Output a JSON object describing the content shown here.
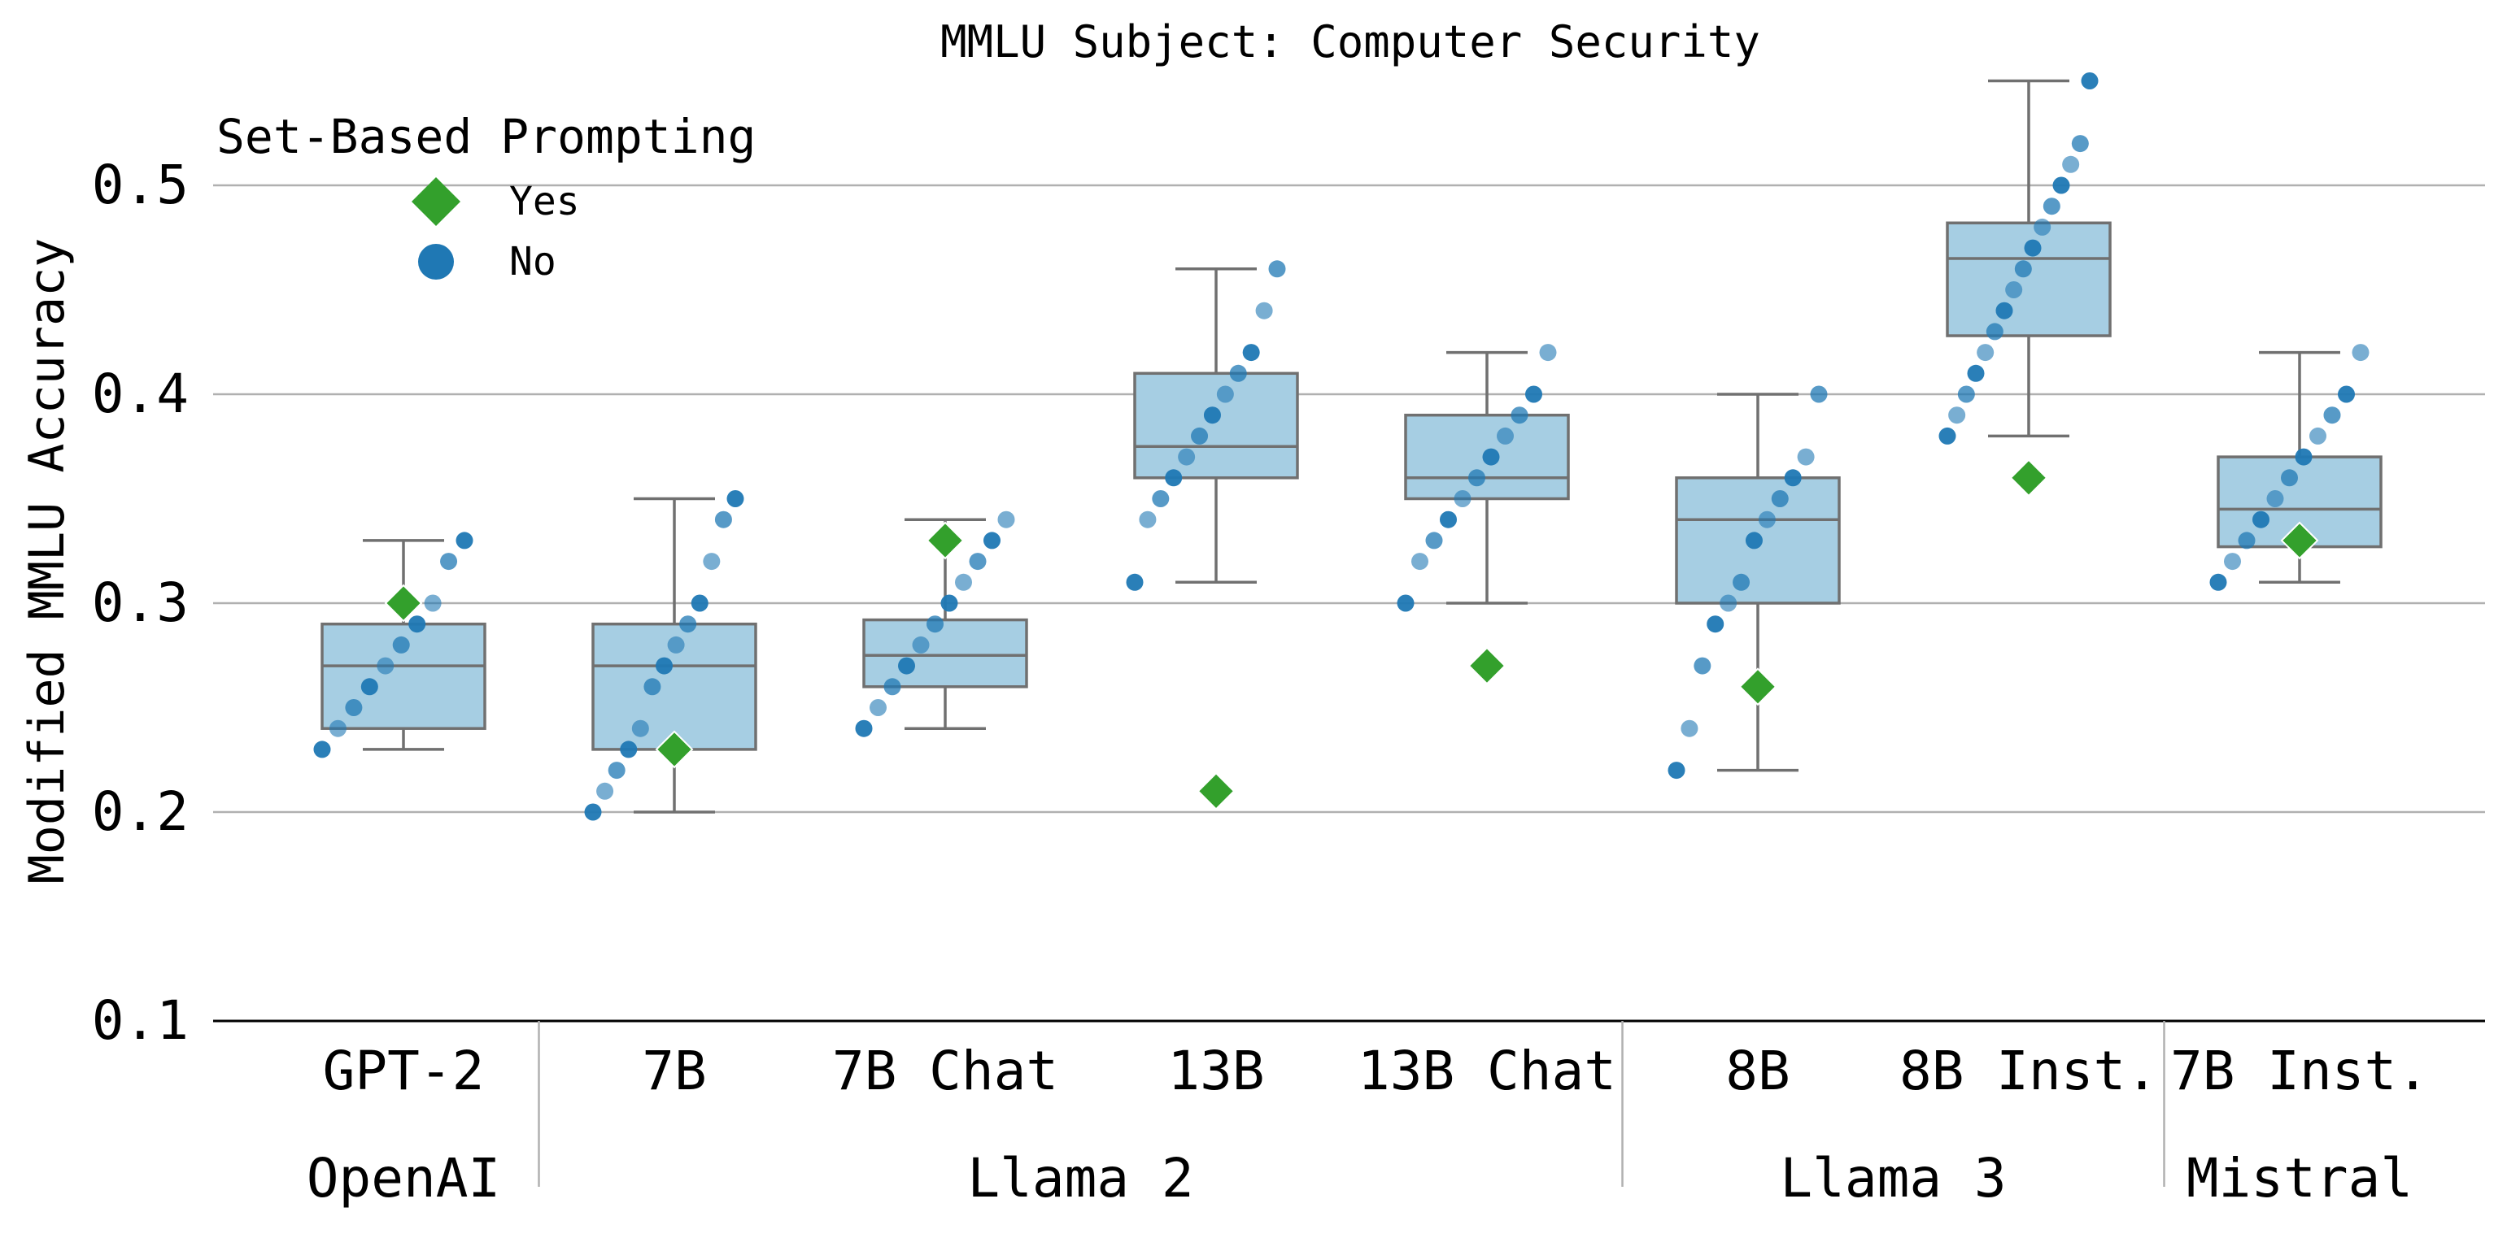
{
  "chart_data": {
    "type": "box",
    "title": "MMLU Subject: Computer Security",
    "ylabel": "Modified MMLU Accuracy",
    "xlabel": "",
    "ylim": [
      0.1,
      0.55
    ],
    "yticks": [
      "0.1",
      "0.2",
      "0.3",
      "0.4",
      "0.5"
    ],
    "grid": "horizontal",
    "legend": {
      "title": "Set-Based Prompting",
      "placement": "top-left",
      "entries": [
        {
          "label": "Yes",
          "marker": "diamond",
          "color": "#33a02c"
        },
        {
          "label": "No",
          "marker": "circle",
          "color": "#1f78b4"
        }
      ]
    },
    "colors": {
      "box_fill": "#a6cee3",
      "box_edge": "#707070",
      "yes": "#33a02c",
      "no": "#1f78b4",
      "grid": "#b0b0b0"
    },
    "categories": [
      "GPT-2",
      "7B",
      "7B Chat",
      "13B",
      "13B Chat",
      "8B",
      "8B Inst.",
      "7B Inst."
    ],
    "groups": [
      {
        "label": "OpenAI",
        "from": 0,
        "to": 0
      },
      {
        "label": "Llama 2",
        "from": 1,
        "to": 4
      },
      {
        "label": "Llama 3",
        "from": 5,
        "to": 6
      },
      {
        "label": "Mistral",
        "from": 7,
        "to": 7
      }
    ],
    "boxes": [
      {
        "category": "GPT-2",
        "whisker_low": 0.23,
        "q1": 0.24,
        "median": 0.27,
        "q3": 0.29,
        "whisker_high": 0.33
      },
      {
        "category": "7B",
        "whisker_low": 0.2,
        "q1": 0.23,
        "median": 0.27,
        "q3": 0.29,
        "whisker_high": 0.35
      },
      {
        "category": "7B Chat",
        "whisker_low": 0.24,
        "q1": 0.26,
        "median": 0.275,
        "q3": 0.292,
        "whisker_high": 0.34
      },
      {
        "category": "13B",
        "whisker_low": 0.31,
        "q1": 0.36,
        "median": 0.375,
        "q3": 0.41,
        "whisker_high": 0.46
      },
      {
        "category": "13B Chat",
        "whisker_low": 0.3,
        "q1": 0.35,
        "median": 0.36,
        "q3": 0.39,
        "whisker_high": 0.42
      },
      {
        "category": "8B",
        "whisker_low": 0.22,
        "q1": 0.3,
        "median": 0.34,
        "q3": 0.36,
        "whisker_high": 0.4
      },
      {
        "category": "8B Inst.",
        "whisker_low": 0.38,
        "q1": 0.428,
        "median": 0.465,
        "q3": 0.482,
        "whisker_high": 0.55
      },
      {
        "category": "7B Inst.",
        "whisker_low": 0.31,
        "q1": 0.327,
        "median": 0.345,
        "q3": 0.37,
        "whisker_high": 0.42
      }
    ],
    "set_based_yes": [
      0.3,
      0.23,
      0.33,
      0.21,
      0.27,
      0.26,
      0.36,
      0.33
    ],
    "set_based_no": [
      [
        0.23,
        0.24,
        0.25,
        0.26,
        0.27,
        0.28,
        0.29,
        0.3,
        0.32,
        0.33
      ],
      [
        0.2,
        0.21,
        0.22,
        0.23,
        0.24,
        0.26,
        0.27,
        0.28,
        0.29,
        0.3,
        0.32,
        0.34,
        0.35
      ],
      [
        0.24,
        0.25,
        0.26,
        0.27,
        0.28,
        0.29,
        0.3,
        0.31,
        0.32,
        0.33,
        0.34
      ],
      [
        0.31,
        0.34,
        0.35,
        0.36,
        0.37,
        0.38,
        0.39,
        0.4,
        0.41,
        0.42,
        0.44,
        0.46
      ],
      [
        0.3,
        0.32,
        0.33,
        0.34,
        0.35,
        0.36,
        0.37,
        0.38,
        0.39,
        0.4,
        0.42
      ],
      [
        0.22,
        0.24,
        0.27,
        0.29,
        0.3,
        0.31,
        0.33,
        0.34,
        0.35,
        0.36,
        0.37,
        0.4
      ],
      [
        0.38,
        0.39,
        0.4,
        0.41,
        0.42,
        0.43,
        0.44,
        0.45,
        0.46,
        0.47,
        0.48,
        0.49,
        0.5,
        0.51,
        0.52,
        0.55
      ],
      [
        0.31,
        0.32,
        0.33,
        0.34,
        0.35,
        0.36,
        0.37,
        0.38,
        0.39,
        0.4,
        0.42
      ]
    ]
  }
}
